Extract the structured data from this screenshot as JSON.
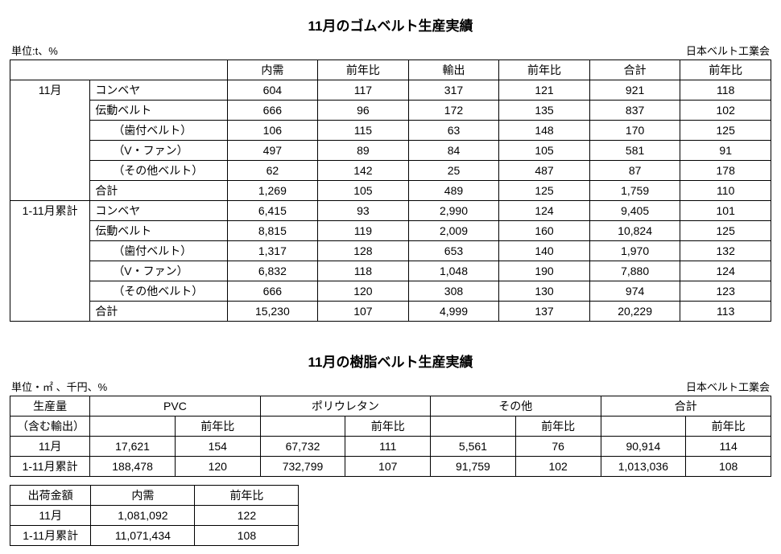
{
  "table1": {
    "title": "11月のゴムベルト生産実績",
    "unit_label": "単位:t、%",
    "source_label": "日本ベルト工業会",
    "headers": [
      "内需",
      "前年比",
      "輸出",
      "前年比",
      "合計",
      "前年比"
    ],
    "groups": [
      {
        "label": "11月",
        "rows": [
          {
            "cat": "コンベヤ",
            "indent": false,
            "values": [
              "604",
              "117",
              "317",
              "121",
              "921",
              "118"
            ]
          },
          {
            "cat": "伝動ベルト",
            "indent": false,
            "values": [
              "666",
              "96",
              "172",
              "135",
              "837",
              "102"
            ]
          },
          {
            "cat": "（歯付ベルト）",
            "indent": true,
            "values": [
              "106",
              "115",
              "63",
              "148",
              "170",
              "125"
            ]
          },
          {
            "cat": "（V・ファン）",
            "indent": true,
            "values": [
              "497",
              "89",
              "84",
              "105",
              "581",
              "91"
            ]
          },
          {
            "cat": "（その他ベルト）",
            "indent": true,
            "values": [
              "62",
              "142",
              "25",
              "487",
              "87",
              "178"
            ]
          },
          {
            "cat": "合計",
            "indent": false,
            "values": [
              "1,269",
              "105",
              "489",
              "125",
              "1,759",
              "110"
            ]
          }
        ]
      },
      {
        "label": "1-11月累計",
        "rows": [
          {
            "cat": "コンベヤ",
            "indent": false,
            "values": [
              "6,415",
              "93",
              "2,990",
              "124",
              "9,405",
              "101"
            ]
          },
          {
            "cat": "伝動ベルト",
            "indent": false,
            "values": [
              "8,815",
              "119",
              "2,009",
              "160",
              "10,824",
              "125"
            ]
          },
          {
            "cat": "（歯付ベルト）",
            "indent": true,
            "values": [
              "1,317",
              "128",
              "653",
              "140",
              "1,970",
              "132"
            ]
          },
          {
            "cat": "（V・ファン）",
            "indent": true,
            "values": [
              "6,832",
              "118",
              "1,048",
              "190",
              "7,880",
              "124"
            ]
          },
          {
            "cat": "（その他ベルト）",
            "indent": true,
            "values": [
              "666",
              "120",
              "308",
              "130",
              "974",
              "123"
            ]
          },
          {
            "cat": "合計",
            "indent": false,
            "values": [
              "15,230",
              "107",
              "4,999",
              "137",
              "20,229",
              "113"
            ]
          }
        ]
      }
    ]
  },
  "table2": {
    "title": "11月の樹脂ベルト生産実績",
    "unit_label": "単位・㎡ 、千円、%",
    "source_label": "日本ベルト工業会",
    "row_head_top": "生産量",
    "row_head_bottom": "（含む輸出）",
    "group_headers": [
      "PVC",
      "ポリウレタン",
      "その他",
      "合計"
    ],
    "sub_header": "前年比",
    "rows": [
      {
        "label": "11月",
        "values": [
          "17,621",
          "154",
          "67,732",
          "111",
          "5,561",
          "76",
          "90,914",
          "114"
        ]
      },
      {
        "label": "1-11月累計",
        "values": [
          "188,478",
          "120",
          "732,799",
          "107",
          "91,759",
          "102",
          "1,013,036",
          "108"
        ]
      }
    ]
  },
  "table3": {
    "headers": [
      "出荷金額",
      "内需",
      "前年比"
    ],
    "rows": [
      {
        "label": "11月",
        "values": [
          "1,081,092",
          "122"
        ]
      },
      {
        "label": "1-11月累計",
        "values": [
          "11,071,434",
          "108"
        ]
      }
    ]
  }
}
